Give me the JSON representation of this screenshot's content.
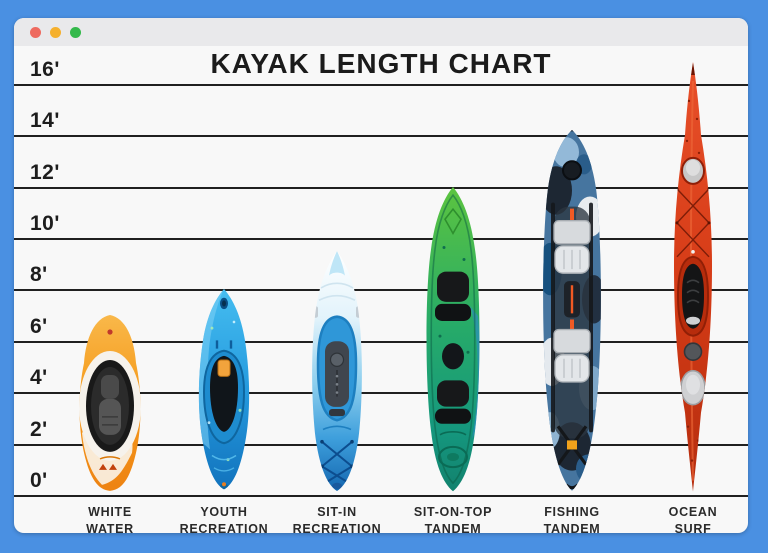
{
  "window": {
    "traffic_lights": [
      {
        "name": "close",
        "color": "#ee6a5f"
      },
      {
        "name": "minimize",
        "color": "#f5b02d"
      },
      {
        "name": "zoom",
        "color": "#34b94b"
      }
    ],
    "colors": {
      "frame_background": "#4a90e2",
      "titlebar": "#e9e9eb",
      "chart_background": "#f8f8f8",
      "gridline": "#202020",
      "text": "#1d1d1d"
    }
  },
  "chart_data": {
    "type": "bar",
    "title": "KAYAK LENGTH CHART",
    "unit": "feet",
    "ylim": [
      0,
      16
    ],
    "grid": true,
    "axis_ticks": [
      "16'",
      "14'",
      "12'",
      "10'",
      "8'",
      "6'",
      "4'",
      "2'",
      "0'"
    ],
    "axis_ticks_ft": [
      16,
      14,
      12,
      10,
      8,
      6,
      4,
      2,
      0
    ],
    "categories": [
      "WHITE WATER",
      "YOUTH RECREATION",
      "SIT-IN RECREATION",
      "SIT-ON-TOP TANDEM",
      "FISHING TANDEM",
      "OCEAN SURF"
    ],
    "values": [
      7,
      8,
      9.5,
      12,
      14.2,
      16.8
    ],
    "kayaks": [
      {
        "name": "White Water",
        "label_lines": [
          "WHITE",
          "WATER"
        ],
        "length_ft": 7,
        "color": "#f59a1b"
      },
      {
        "name": "Youth Recreation",
        "label_lines": [
          "YOUTH",
          "RECREATION"
        ],
        "length_ft": 8,
        "color": "#2aa3e8"
      },
      {
        "name": "Sit-In Recreation",
        "label_lines": [
          "SIT-IN",
          "RECREATION"
        ],
        "length_ft": 9.5,
        "color": "#3e9fdc"
      },
      {
        "name": "Sit-On-Top Tandem",
        "label_lines": [
          "SIT-ON-TOP",
          "TANDEM"
        ],
        "length_ft": 12,
        "color": "#27ab68"
      },
      {
        "name": "Fishing Tandem",
        "label_lines": [
          "FISHING",
          "TANDEM"
        ],
        "length_ft": 14.2,
        "color": "#3c7cb3"
      },
      {
        "name": "Ocean Surf",
        "label_lines": [
          "OCEAN",
          "SURF"
        ],
        "length_ft": 16.8,
        "color": "#d63c17"
      }
    ]
  }
}
